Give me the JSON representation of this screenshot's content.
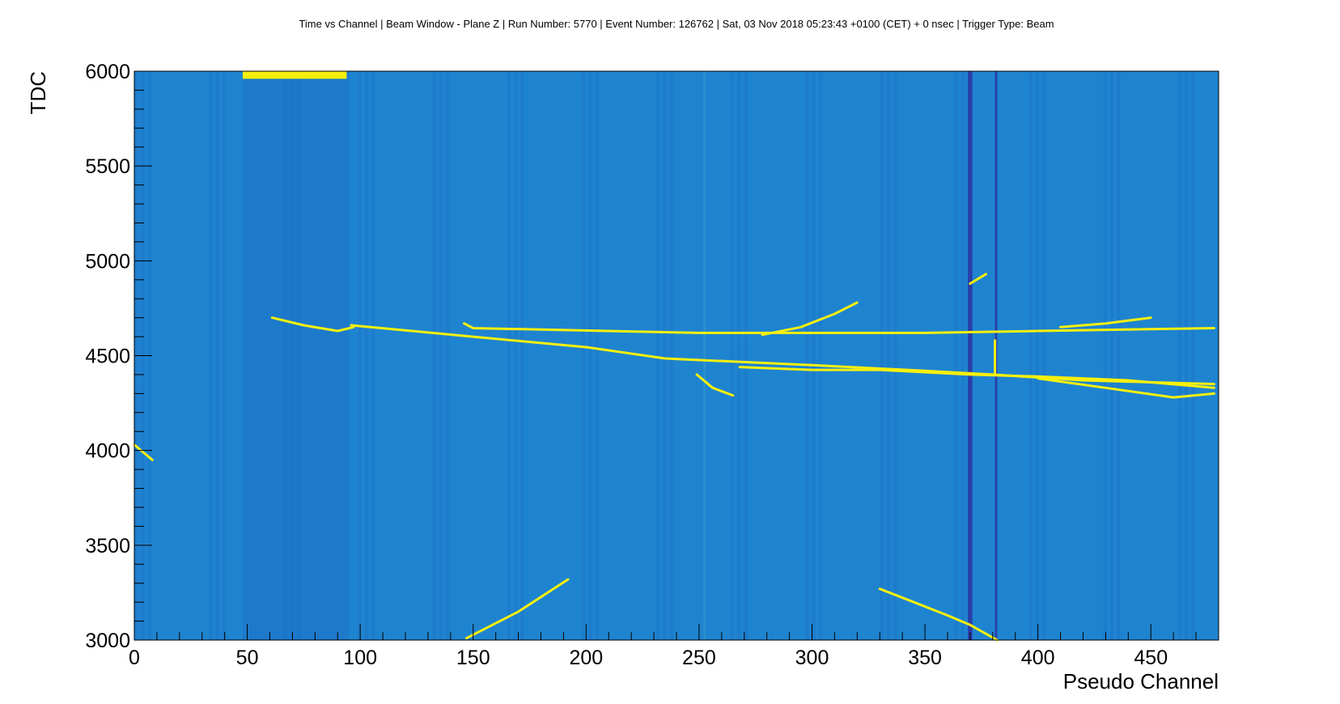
{
  "chart_data": {
    "type": "heatmap",
    "title": "Time vs Channel | Beam Window - Plane Z | Run Number: 5770 | Event Number: 126762 | Sat, 03 Nov 2018 05:23:43 +0100 (CET) +        0 nsec | Trigger Type: Beam",
    "xlabel": "Pseudo Channel",
    "ylabel": "TDC",
    "xlim": [
      0,
      480
    ],
    "ylim": [
      3000,
      6000
    ],
    "x_ticks": [
      "0",
      "50",
      "100",
      "150",
      "200",
      "250",
      "300",
      "350",
      "400",
      "450"
    ],
    "y_ticks": [
      "3000",
      "3500",
      "4000",
      "4500",
      "5000",
      "5500",
      "6000"
    ],
    "grid": false,
    "colors": {
      "background": "#1f84d0",
      "hit": "#f7f00c",
      "dead_channel": "#2a3fa8",
      "noisy_band": "#1a6ec6"
    },
    "tracks": [
      {
        "name": "track-1",
        "points": [
          [
            96,
            4660
          ],
          [
            150,
            4600
          ],
          [
            200,
            4545
          ],
          [
            235,
            4485
          ],
          [
            300,
            4450
          ],
          [
            350,
            4420
          ],
          [
            380,
            4400
          ],
          [
            420,
            4370
          ],
          [
            478,
            4350
          ]
        ]
      },
      {
        "name": "track-2",
        "points": [
          [
            146,
            4670
          ],
          [
            150,
            4645
          ],
          [
            250,
            4620
          ],
          [
            350,
            4620
          ],
          [
            400,
            4630
          ],
          [
            478,
            4645
          ]
        ]
      },
      {
        "name": "track-3",
        "points": [
          [
            268,
            4440
          ],
          [
            300,
            4425
          ],
          [
            330,
            4425
          ],
          [
            370,
            4400
          ],
          [
            400,
            4390
          ],
          [
            440,
            4370
          ],
          [
            478,
            4330
          ]
        ]
      },
      {
        "name": "track-4",
        "points": [
          [
            278,
            4610
          ],
          [
            295,
            4650
          ],
          [
            310,
            4720
          ],
          [
            320,
            4780
          ]
        ]
      },
      {
        "name": "track-5",
        "points": [
          [
            147,
            3010
          ],
          [
            170,
            3150
          ],
          [
            192,
            3320
          ]
        ]
      },
      {
        "name": "track-6",
        "points": [
          [
            330,
            3270
          ],
          [
            360,
            3130
          ],
          [
            370,
            3080
          ],
          [
            382,
            3000
          ]
        ]
      },
      {
        "name": "track-7",
        "points": [
          [
            249,
            4400
          ],
          [
            256,
            4330
          ],
          [
            265,
            4290
          ]
        ]
      },
      {
        "name": "track-8",
        "points": [
          [
            370,
            4880
          ],
          [
            377,
            4930
          ]
        ]
      },
      {
        "name": "track-9",
        "points": [
          [
            0,
            4030
          ],
          [
            8,
            3950
          ]
        ]
      },
      {
        "name": "track-10",
        "points": [
          [
            61,
            4700
          ],
          [
            75,
            4660
          ],
          [
            90,
            4630
          ],
          [
            97,
            4650
          ]
        ]
      },
      {
        "name": "vertical-hit",
        "points": [
          [
            381,
            4580
          ],
          [
            381,
            4400
          ]
        ]
      },
      {
        "name": "track-11",
        "points": [
          [
            400,
            4380
          ],
          [
            430,
            4330
          ],
          [
            460,
            4280
          ],
          [
            478,
            4300
          ]
        ]
      },
      {
        "name": "track-12",
        "points": [
          [
            410,
            4650
          ],
          [
            430,
            4670
          ],
          [
            450,
            4700
          ]
        ]
      }
    ],
    "hit_blobs": [
      {
        "x": [
          48,
          94
        ],
        "y": [
          5960,
          6000
        ]
      }
    ]
  }
}
